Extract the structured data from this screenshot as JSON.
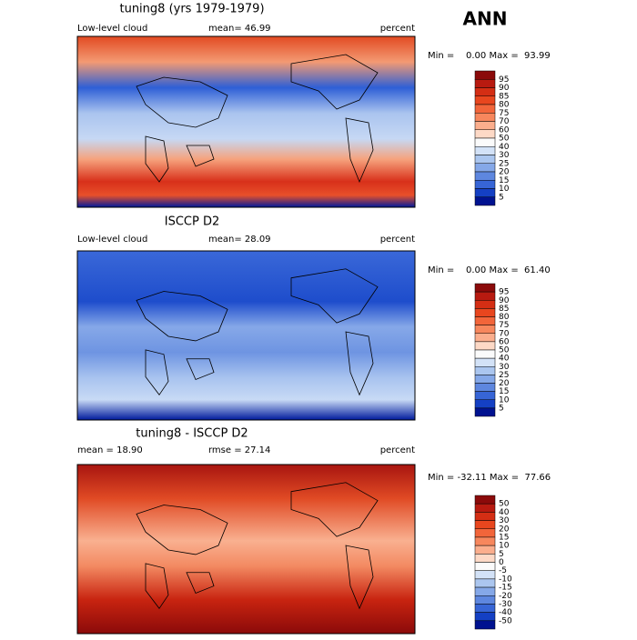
{
  "title": "ANN",
  "panels": [
    {
      "title": "tuning8 (yrs 1979-1979)",
      "left": "Low-level cloud",
      "mid": "mean=  46.99",
      "right": "percent",
      "stats": "Min =    0.00 Max =  93.99",
      "colorbar": {
        "labels": [
          95,
          90,
          85,
          80,
          75,
          70,
          60,
          50,
          40,
          30,
          25,
          20,
          15,
          10,
          5
        ],
        "colors": [
          "#8b0a0a",
          "#b81a10",
          "#d42e14",
          "#e8461e",
          "#f2653a",
          "#f7875d",
          "#fbae8d",
          "#fdd9c6",
          "#fbfbfb",
          "#d3e2f7",
          "#abc6ef",
          "#85a8e8",
          "#5e87df",
          "#3765d6",
          "#1440c4",
          "#001290"
        ]
      }
    },
    {
      "title": "ISCCP D2",
      "left": "Low-level cloud",
      "mid": "mean=  28.09",
      "right": "percent",
      "stats": "Min =    0.00 Max =  61.40",
      "colorbar": {
        "labels": [
          95,
          90,
          85,
          80,
          75,
          70,
          60,
          50,
          40,
          30,
          25,
          20,
          15,
          10,
          5
        ],
        "colors": [
          "#8b0a0a",
          "#b81a10",
          "#d42e14",
          "#e8461e",
          "#f2653a",
          "#f7875d",
          "#fbae8d",
          "#fdd9c6",
          "#fbfbfb",
          "#d3e2f7",
          "#abc6ef",
          "#85a8e8",
          "#5e87df",
          "#3765d6",
          "#1440c4",
          "#001290"
        ]
      }
    },
    {
      "title": "tuning8 - ISCCP D2",
      "left": "mean =  18.90",
      "mid": "rmse =  27.14",
      "right": "percent",
      "stats": "Min = -32.11 Max =  77.66",
      "colorbar": {
        "labels": [
          50,
          40,
          30,
          20,
          15,
          10,
          5,
          0,
          -5,
          -10,
          -15,
          -20,
          -30,
          -40,
          -50
        ],
        "colors": [
          "#8b0a0a",
          "#b81a10",
          "#d42e14",
          "#e8461e",
          "#f2653a",
          "#f7875d",
          "#fbae8d",
          "#fdd9c6",
          "#fbfbfb",
          "#d3e2f7",
          "#abc6ef",
          "#85a8e8",
          "#5e87df",
          "#3765d6",
          "#1440c4",
          "#001290"
        ]
      }
    }
  ]
}
